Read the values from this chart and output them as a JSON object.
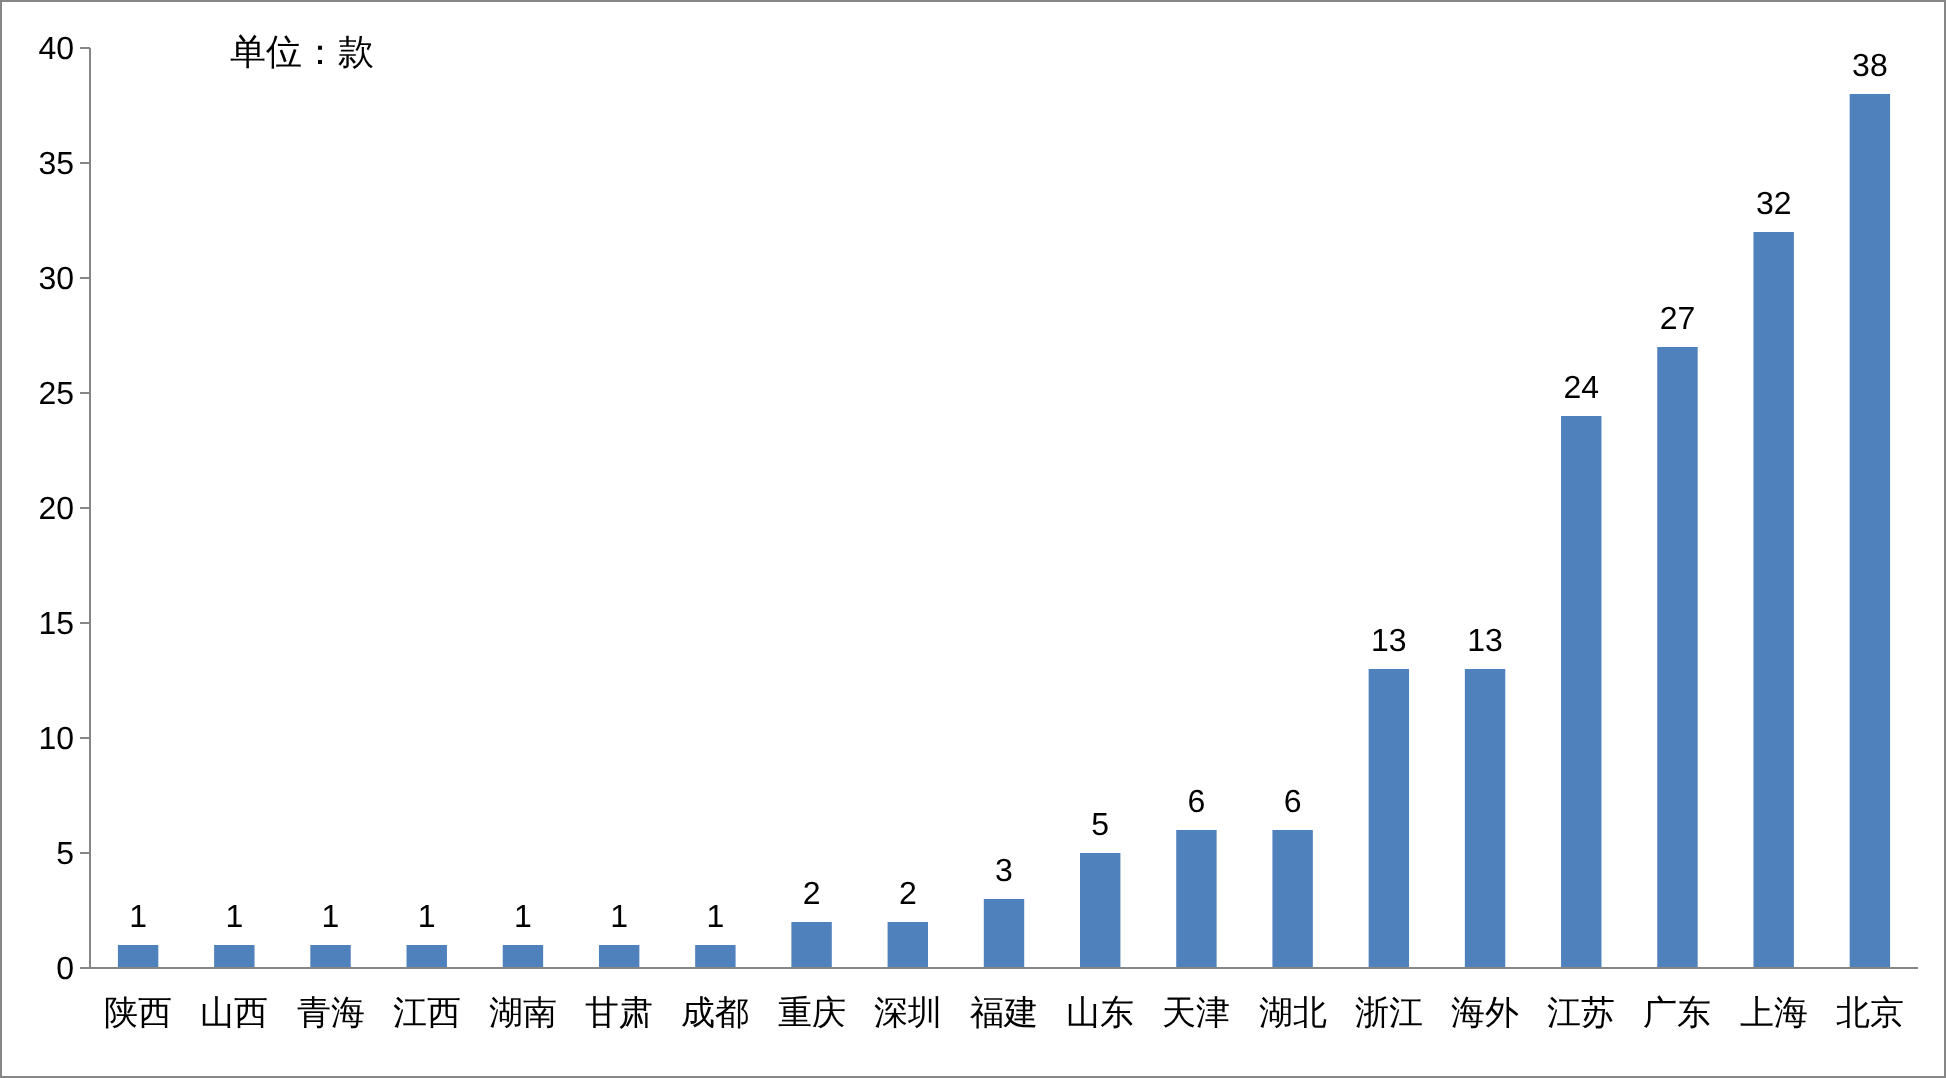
{
  "chart_data": {
    "type": "bar",
    "annotations": [
      "单位：款"
    ],
    "categories": [
      "陕西",
      "山西",
      "青海",
      "江西",
      "湖南",
      "甘肃",
      "成都",
      "重庆",
      "深圳",
      "福建",
      "山东",
      "天津",
      "湖北",
      "浙江",
      "海外",
      "江苏",
      "广东",
      "上海",
      "北京"
    ],
    "values": [
      1,
      1,
      1,
      1,
      1,
      1,
      1,
      2,
      2,
      3,
      5,
      6,
      6,
      13,
      13,
      24,
      27,
      32,
      38
    ],
    "color": "#4f81bd",
    "ylim": [
      0,
      40
    ],
    "yticks": [
      0,
      5,
      10,
      15,
      20,
      25,
      30,
      35,
      40
    ],
    "grid": false,
    "data_labels": true
  }
}
